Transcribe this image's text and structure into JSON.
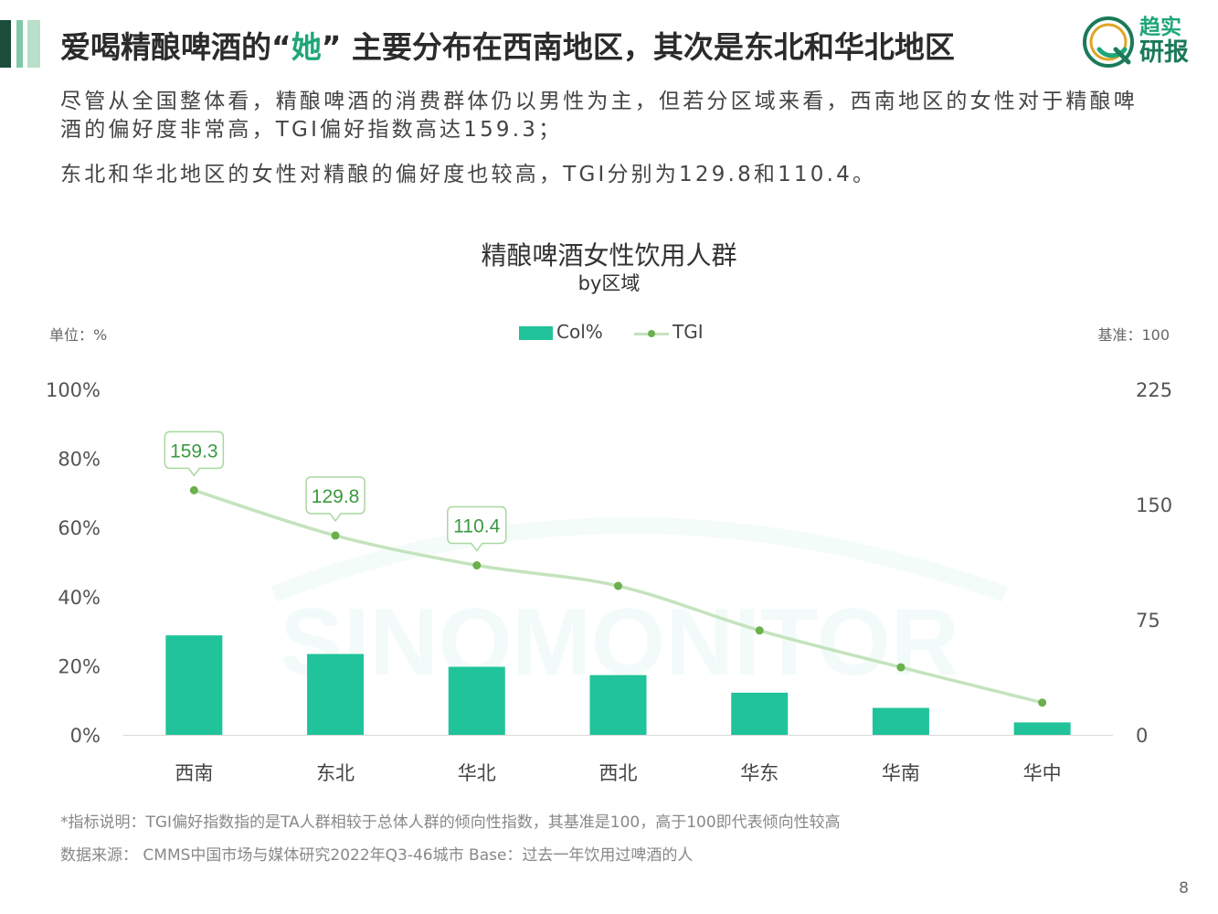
{
  "header": {
    "title_before": "爱喝精酿啤酒的“",
    "title_highlight": "她",
    "title_after": "” 主要分布在西南地区，其次是东北和华北地区",
    "accent_color": "#1ea67a"
  },
  "logo": {
    "line1": "趋实",
    "line2": "研报",
    "icon": "magnifier-q-icon"
  },
  "body": {
    "paragraph1": "尽管从全国整体看，精酿啤酒的消费群体仍以男性为主，但若分区域来看，西南地区的女性对于精酿啤酒的偏好度非常高，TGI偏好指数高达159.3；",
    "paragraph2": "东北和华北地区的女性对精酿的偏好度也较高，TGI分别为129.8和110.4。"
  },
  "chart_data": {
    "type": "bar",
    "title": "精酿啤酒女性饮用人群",
    "subtitle": "by区域",
    "unit_left": "单位：%",
    "unit_right": "基准：100",
    "categories": [
      "西南",
      "东北",
      "华北",
      "西北",
      "华东",
      "华南",
      "华中"
    ],
    "series": [
      {
        "name": "Col%",
        "type": "bar",
        "axis": "left",
        "color": "#20c39a",
        "values": [
          28.8,
          23.4,
          19.7,
          17.3,
          12.2,
          7.8,
          3.6
        ]
      },
      {
        "name": "TGI",
        "type": "line",
        "axis": "right",
        "color": "#c4e3bd",
        "marker_color": "#6ab04c",
        "values": [
          159.3,
          129.8,
          110.4,
          97,
          68,
          44,
          21
        ],
        "labeled_values": [
          "159.3",
          "129.8",
          "110.4"
        ]
      }
    ],
    "y_left": {
      "min": 0,
      "max": 100,
      "ticks": [
        "0%",
        "20%",
        "40%",
        "60%",
        "80%",
        "100%"
      ]
    },
    "y_right": {
      "min": 0,
      "max": 225,
      "ticks": [
        "0",
        "75",
        "150",
        "225"
      ]
    },
    "legend_position": "top-center",
    "grid": false,
    "watermark": "SINOMONITOR"
  },
  "footnotes": {
    "note": "*指标说明：TGI偏好指数指的是TA人群相较于总体人群的倾向性指数，其基准是100，高于100即代表倾向性较高",
    "source": "数据来源： CMMS中国市场与媒体研究2022年Q3-46城市 Base：过去一年饮用过啤酒的人"
  },
  "page_number": "8"
}
